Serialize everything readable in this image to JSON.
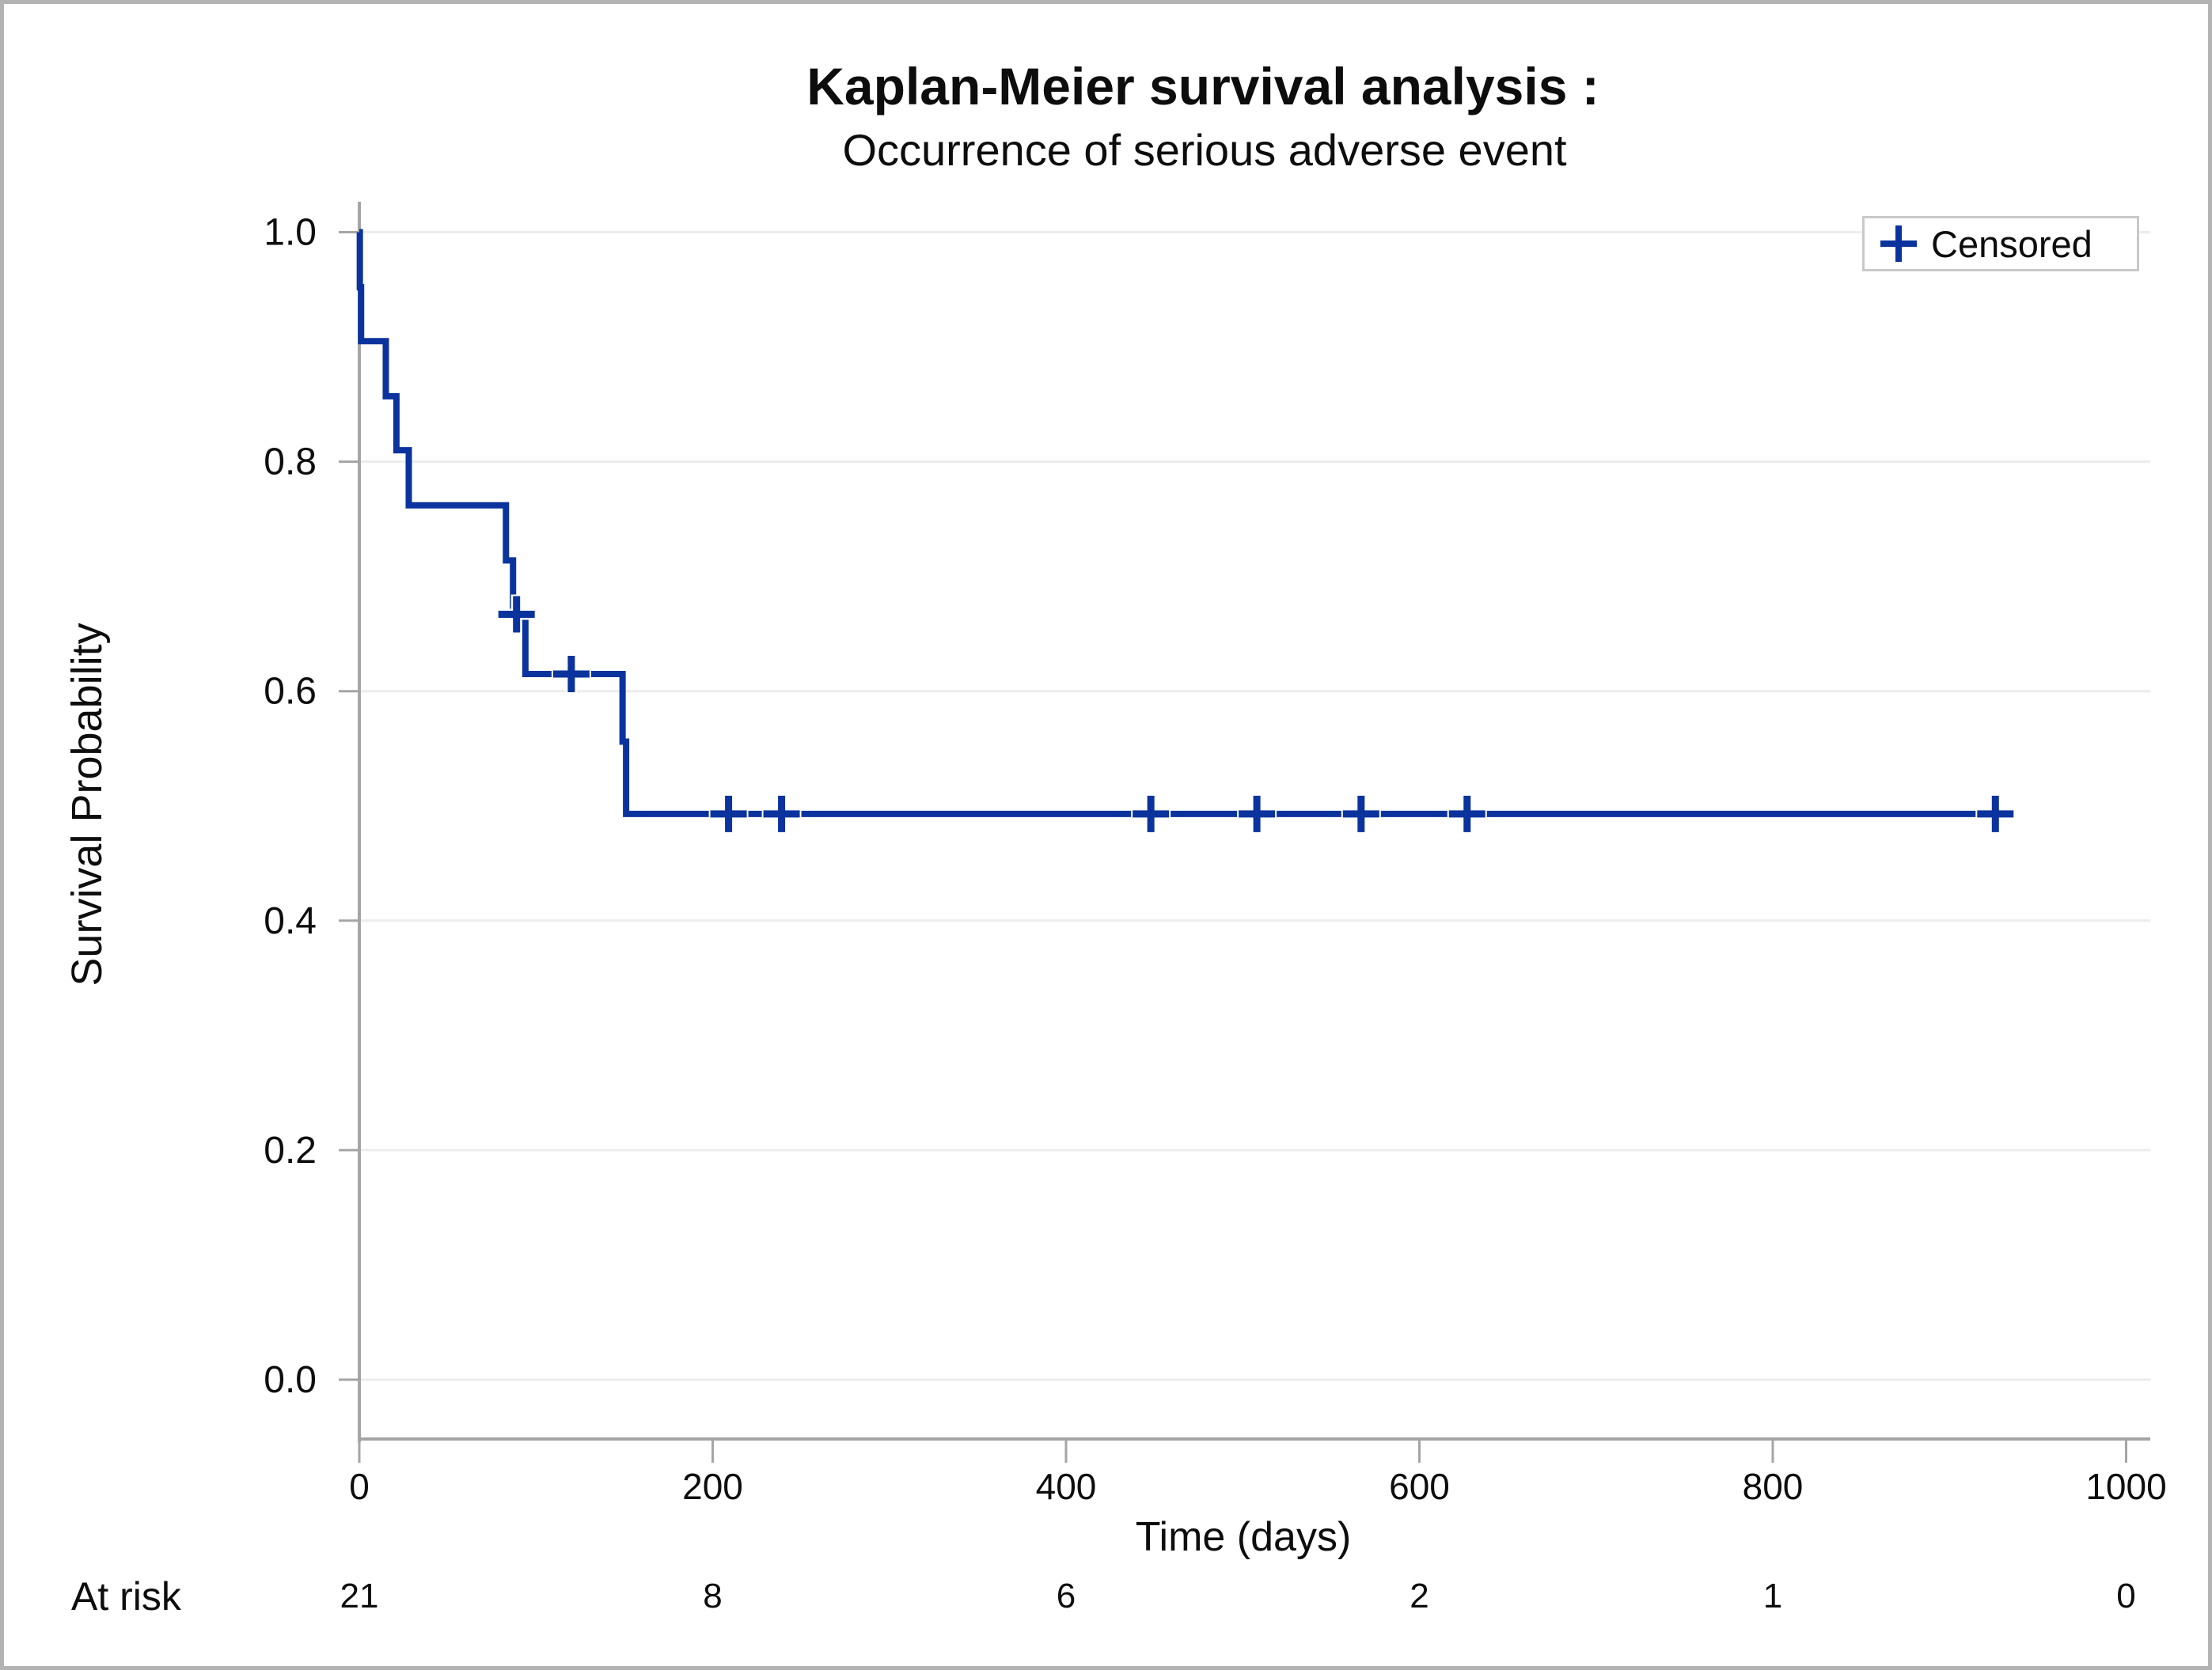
{
  "figure": {
    "title": "Kaplan-Meier survival analysis :",
    "subtitle": "Occurrence of serious adverse event"
  },
  "colors": {
    "accent": "#0b339e",
    "marker_halo": "#ffffff",
    "grid": "#ececec",
    "axis": "#a5a5a5",
    "text": "#0d0d0d",
    "legend_border": "#c9c9c9",
    "figure_border": "#b3b3b3",
    "background": "#ffffff"
  },
  "chart_data": {
    "type": "line",
    "subtype": "kaplan-meier-step",
    "title": "Kaplan-Meier survival analysis :",
    "subtitle": "Occurrence of serious adverse event",
    "xlabel": "Time (days)",
    "ylabel": "Survival Probability",
    "xlim": [
      0,
      1000
    ],
    "ylim": [
      0.0,
      1.0
    ],
    "x_ticks": [
      0,
      200,
      400,
      600,
      800,
      1000
    ],
    "x_tick_labels": [
      "0",
      "200",
      "400",
      "600",
      "800",
      "1000"
    ],
    "y_ticks": [
      0.0,
      0.2,
      0.4,
      0.6,
      0.8,
      1.0
    ],
    "y_tick_labels": [
      "0.0",
      "0.2",
      "0.4",
      "0.6",
      "0.8",
      "1.0"
    ],
    "grid": true,
    "legend": {
      "label": "Censored",
      "marker": "plus",
      "position": "top-right"
    },
    "series": [
      {
        "name": "Survival",
        "color": "#0b339e",
        "step_points": [
          [
            0,
            1.0
          ],
          [
            0.3,
            0.952
          ],
          [
            1,
            0.905
          ],
          [
            15,
            0.857
          ],
          [
            21,
            0.81
          ],
          [
            28,
            0.762
          ],
          [
            83,
            0.714
          ],
          [
            87,
            0.667
          ],
          [
            94,
            0.615
          ],
          [
            149,
            0.556
          ],
          [
            151,
            0.493
          ]
        ],
        "end_time": 937
      }
    ],
    "censored_points": [
      [
        89,
        0.667
      ],
      [
        120,
        0.615
      ],
      [
        209,
        0.493
      ],
      [
        239,
        0.493
      ],
      [
        448,
        0.493
      ],
      [
        508,
        0.493
      ],
      [
        567,
        0.493
      ],
      [
        627,
        0.493
      ],
      [
        926,
        0.493
      ]
    ],
    "at_risk": {
      "label": "At risk",
      "times": [
        0,
        200,
        400,
        600,
        800,
        1000
      ],
      "counts": [
        "21",
        "8",
        "6",
        "2",
        "1",
        "0"
      ]
    }
  }
}
